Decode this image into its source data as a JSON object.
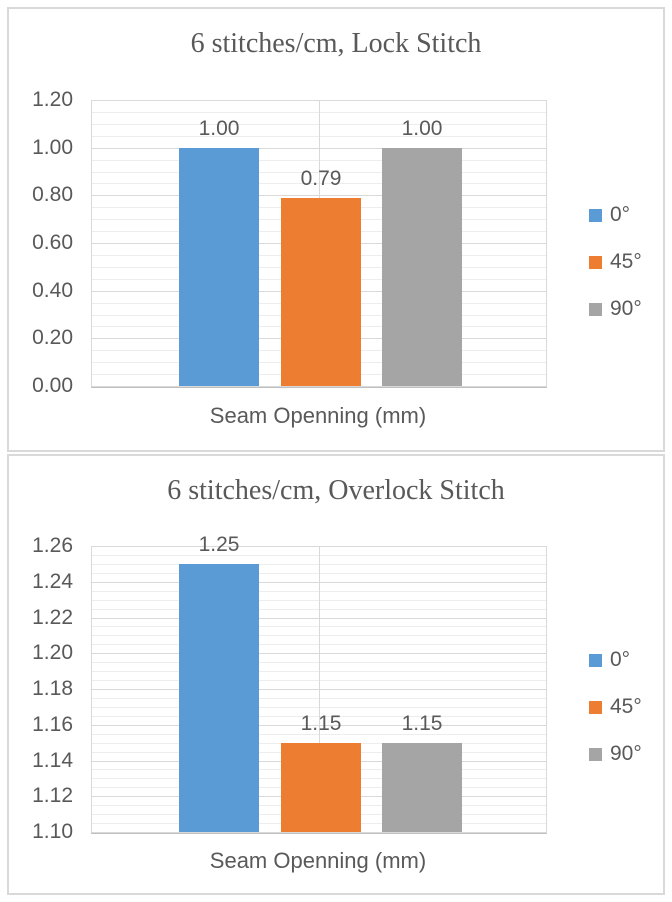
{
  "colors": {
    "series_blue": "#5B9BD5",
    "series_orange": "#ED7D31",
    "series_gray": "#A5A5A5",
    "text_gray": "#595959",
    "major_gridline": "#D9D9D9",
    "minor_gridline": "#EDEDED",
    "panel_border": "#D9D9D9"
  },
  "chart_data": [
    {
      "type": "bar",
      "title": "6 stitches/cm, Lock Stitch",
      "xlabel": "Seam Openning (mm)",
      "categories": [
        "Seam Openning (mm)"
      ],
      "series": [
        {
          "name": "0°",
          "color": "#5B9BD5",
          "values": [
            1.0
          ]
        },
        {
          "name": "45°",
          "color": "#ED7D31",
          "values": [
            0.79
          ]
        },
        {
          "name": "90°",
          "color": "#A5A5A5",
          "values": [
            1.0
          ]
        }
      ],
      "data_labels": [
        "1.00",
        "0.79",
        "1.00"
      ],
      "ylim": [
        0.0,
        1.2
      ],
      "ytick_step": 0.2,
      "minor_step": 0.05,
      "yticks": [
        "1.20",
        "1.00",
        "0.80",
        "0.60",
        "0.40",
        "0.20",
        "0.00"
      ],
      "legend_position": "right",
      "grid": true
    },
    {
      "type": "bar",
      "title": "6 stitches/cm, Overlock Stitch",
      "xlabel": "Seam Openning (mm)",
      "categories": [
        "Seam Openning (mm)"
      ],
      "series": [
        {
          "name": "0°",
          "color": "#5B9BD5",
          "values": [
            1.25
          ]
        },
        {
          "name": "45°",
          "color": "#ED7D31",
          "values": [
            1.15
          ]
        },
        {
          "name": "90°",
          "color": "#A5A5A5",
          "values": [
            1.15
          ]
        }
      ],
      "data_labels": [
        "1.25",
        "1.15",
        "1.15"
      ],
      "ylim": [
        1.1,
        1.26
      ],
      "ytick_step": 0.02,
      "minor_step": 0.005,
      "yticks": [
        "1.26",
        "1.24",
        "1.22",
        "1.20",
        "1.18",
        "1.16",
        "1.14",
        "1.12",
        "1.10"
      ],
      "legend_position": "right",
      "grid": true
    }
  ]
}
